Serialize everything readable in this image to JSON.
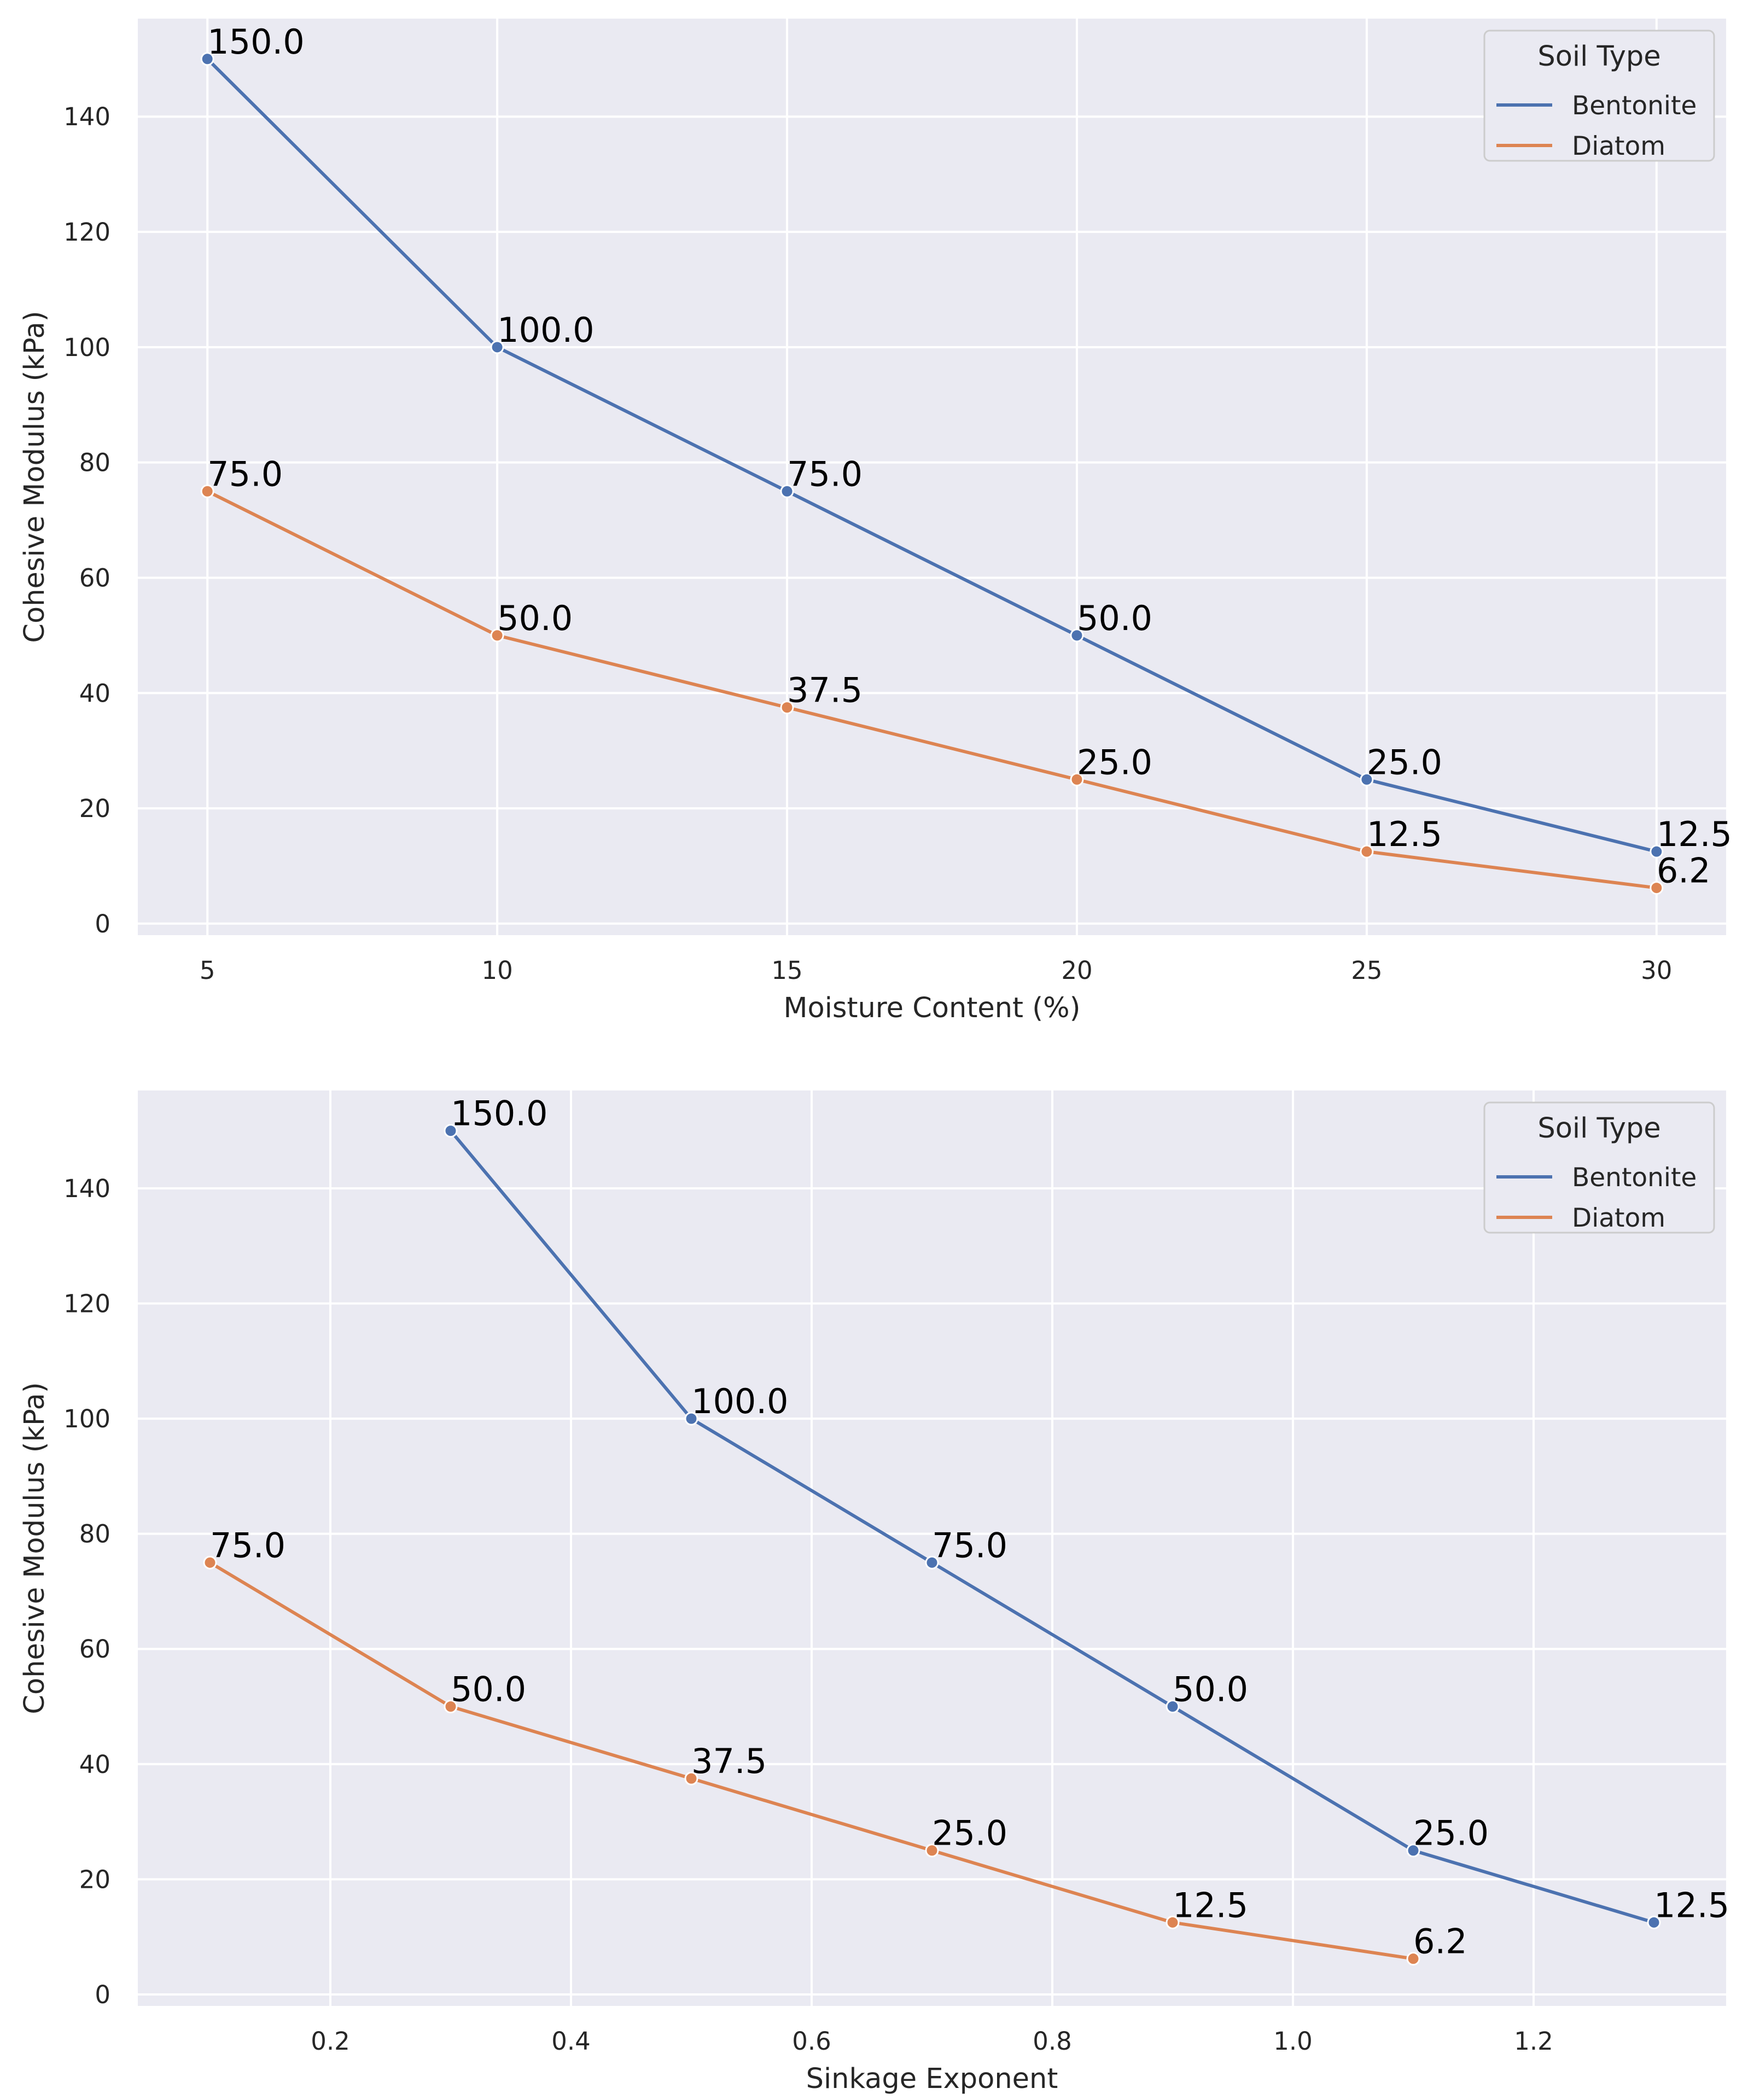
{
  "chart_data": [
    {
      "type": "line",
      "xlabel": "Moisture Content (%)",
      "ylabel": "Cohesive Modulus (kPa)",
      "xlim": [
        3.8,
        31.2
      ],
      "ylim": [
        -2,
        157
      ],
      "xticks": [
        5,
        10,
        15,
        20,
        25,
        30
      ],
      "xtick_labels": [
        "5",
        "10",
        "15",
        "20",
        "25",
        "30"
      ],
      "yticks": [
        0,
        20,
        40,
        60,
        80,
        100,
        120,
        140
      ],
      "ytick_labels": [
        "0",
        "20",
        "40",
        "60",
        "80",
        "100",
        "120",
        "140"
      ],
      "legend": {
        "title": "Soil Type",
        "placement": "top-right"
      },
      "series": [
        {
          "name": "Bentonite",
          "color": "#4c72b0",
          "x": [
            5,
            10,
            15,
            20,
            25,
            30
          ],
          "y": [
            150,
            100,
            75,
            50,
            25,
            12.5
          ],
          "labels": [
            "150.0",
            "100.0",
            "75.0",
            "50.0",
            "25.0",
            "12.5"
          ]
        },
        {
          "name": "Diatom",
          "color": "#dd8452",
          "x": [
            5,
            10,
            15,
            20,
            25,
            30
          ],
          "y": [
            75,
            50,
            37.5,
            25,
            12.5,
            6.2
          ],
          "labels": [
            "75.0",
            "50.0",
            "37.5",
            "25.0",
            "12.5",
            "6.2"
          ]
        }
      ]
    },
    {
      "type": "line",
      "xlabel": "Sinkage Exponent",
      "ylabel": "Cohesive Modulus (kPa)",
      "xlim": [
        0.04,
        1.36
      ],
      "ylim": [
        -2,
        157
      ],
      "xticks": [
        0.2,
        0.4,
        0.6,
        0.8,
        1.0,
        1.2
      ],
      "xtick_labels": [
        "0.2",
        "0.4",
        "0.6",
        "0.8",
        "1.0",
        "1.2"
      ],
      "yticks": [
        0,
        20,
        40,
        60,
        80,
        100,
        120,
        140
      ],
      "ytick_labels": [
        "0",
        "20",
        "40",
        "60",
        "80",
        "100",
        "120",
        "140"
      ],
      "legend": {
        "title": "Soil Type",
        "placement": "top-right"
      },
      "series": [
        {
          "name": "Bentonite",
          "color": "#4c72b0",
          "x": [
            0.3,
            0.5,
            0.7,
            0.9,
            1.1,
            1.3
          ],
          "y": [
            150,
            100,
            75,
            50,
            25,
            12.5
          ],
          "labels": [
            "150.0",
            "100.0",
            "75.0",
            "50.0",
            "25.0",
            "12.5"
          ]
        },
        {
          "name": "Diatom",
          "color": "#dd8452",
          "x": [
            0.1,
            0.3,
            0.5,
            0.7,
            0.9,
            1.1
          ],
          "y": [
            75,
            50,
            37.5,
            25,
            12.5,
            6.2
          ],
          "labels": [
            "75.0",
            "50.0",
            "37.5",
            "25.0",
            "12.5",
            "6.2"
          ]
        }
      ]
    }
  ]
}
